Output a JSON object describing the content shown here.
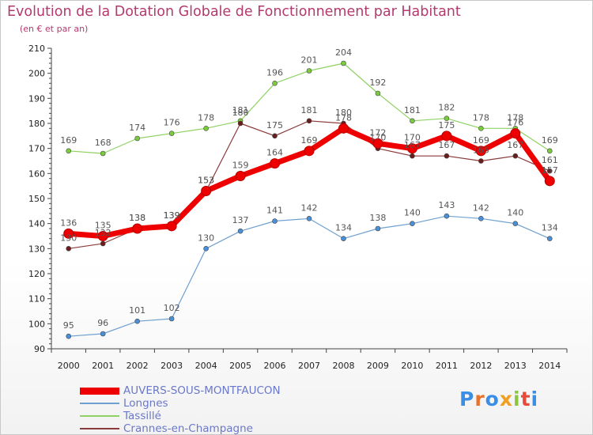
{
  "title": "Evolution de la Dotation Globale de Fonctionnement par Habitant",
  "subtitle": "(en € et par an)",
  "logo_text": "Proxiti",
  "chart_data": {
    "type": "line",
    "title": "Evolution de la Dotation Globale de Fonctionnement par Habitant",
    "subtitle": "(en € et par an)",
    "xlabel": "",
    "ylabel": "",
    "x": [
      "2000",
      "2001",
      "2002",
      "2003",
      "2004",
      "2005",
      "2006",
      "2007",
      "2008",
      "2009",
      "2010",
      "2011",
      "2012",
      "2013",
      "2014"
    ],
    "ylim": [
      90,
      210
    ],
    "yticks": [
      90,
      100,
      110,
      120,
      130,
      140,
      150,
      160,
      170,
      180,
      190,
      200,
      210
    ],
    "grid": false,
    "legend_position": "bottom-left",
    "series": [
      {
        "name": "Tassillé",
        "color": "#8fd163",
        "marker_color": "#7acc3c",
        "line_width": 1.2,
        "marker": 3,
        "values": [
          169,
          168,
          174,
          176,
          178,
          181,
          196,
          201,
          204,
          192,
          181,
          182,
          178,
          178,
          169
        ]
      },
      {
        "name": "Longnes",
        "color": "#6fa0cf",
        "marker_color": "#4a90d9",
        "line_width": 1.2,
        "marker": 3,
        "values": [
          95,
          96,
          101,
          102,
          130,
          137,
          141,
          142,
          134,
          138,
          140,
          143,
          142,
          140,
          134
        ]
      },
      {
        "name": "Crannes-en-Champagne",
        "color": "#8a3a3a",
        "marker_color": "#6b1d1d",
        "line_width": 1.2,
        "marker": 3,
        "values": [
          130,
          132,
          138,
          139,
          153,
          180,
          175,
          181,
          180,
          170,
          167,
          167,
          165,
          167,
          161
        ]
      },
      {
        "name": "AUVERS-SOUS-MONTFAUCON",
        "color": "#ee0000",
        "marker_color": "#ee0000",
        "line_width": 7,
        "marker": 6,
        "values": [
          136,
          135,
          138,
          139,
          153,
          159,
          164,
          169,
          178,
          172,
          170,
          175,
          169,
          176,
          157
        ]
      }
    ]
  },
  "legend": [
    {
      "name": "AUVERS-SOUS-MONTFAUCON",
      "color": "#ee0000",
      "text_color": "#6b78c8"
    },
    {
      "name": "Longnes",
      "color": "#6fa0cf",
      "text_color": "#6b78c8"
    },
    {
      "name": "Tassillé",
      "color": "#8fd163",
      "text_color": "#6b78c8"
    },
    {
      "name": "Crannes-en-Champagne",
      "color": "#8a3a3a",
      "text_color": "#6b78c8"
    }
  ]
}
